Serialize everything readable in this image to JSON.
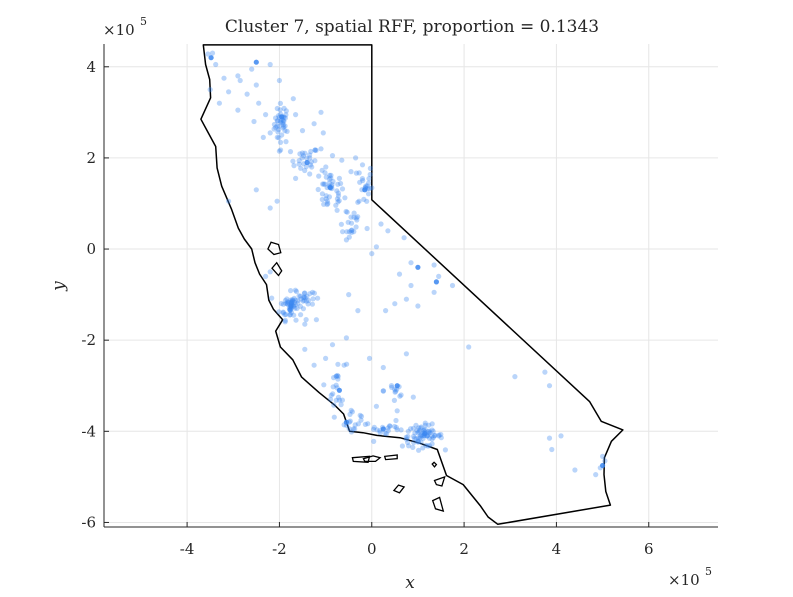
{
  "chart_data": {
    "type": "scatter",
    "title": "Cluster 7, spatial RFF, proportion = 0.1343",
    "xlabel": "x",
    "ylabel": "y",
    "x_exponent_base": "×10",
    "x_exponent_power": "5",
    "y_exponent_base": "×10",
    "y_exponent_power": "5",
    "xlim": [
      -5.8,
      7.5
    ],
    "ylim": [
      -6.1,
      4.5
    ],
    "xticks": [
      -4,
      -2,
      0,
      2,
      4,
      6
    ],
    "yticks": [
      -6,
      -4,
      -2,
      0,
      2,
      4
    ],
    "xtick_labels": [
      "-4",
      "-2",
      "0",
      "2",
      "4",
      "6"
    ],
    "ytick_labels": [
      "-6",
      "-4",
      "-2",
      "0",
      "2",
      "4"
    ],
    "grid": true,
    "colors": {
      "points": "#3a86f0",
      "outline": "#000000",
      "grid": "#e6e6e6",
      "axes": "#262626"
    },
    "outline": [
      [
        -3.65,
        4.48
      ],
      [
        0.0,
        4.48
      ],
      [
        0.0,
        1.08
      ],
      [
        4.72,
        -3.35
      ],
      [
        4.97,
        -3.78
      ],
      [
        5.44,
        -3.97
      ],
      [
        5.19,
        -4.22
      ],
      [
        5.04,
        -4.58
      ],
      [
        5.03,
        -4.95
      ],
      [
        5.07,
        -5.32
      ],
      [
        5.17,
        -5.62
      ],
      [
        2.73,
        -6.04
      ],
      [
        2.52,
        -5.88
      ],
      [
        2.35,
        -5.63
      ],
      [
        2.18,
        -5.42
      ],
      [
        1.98,
        -5.17
      ],
      [
        1.62,
        -4.97
      ],
      [
        1.42,
        -4.4
      ],
      [
        1.04,
        -4.26
      ],
      [
        0.61,
        -4.14
      ],
      [
        0.11,
        -4.09
      ],
      [
        -0.19,
        -4.03
      ],
      [
        -0.48,
        -4.0
      ],
      [
        -0.61,
        -3.62
      ],
      [
        -0.81,
        -3.42
      ],
      [
        -1.14,
        -3.15
      ],
      [
        -1.52,
        -2.81
      ],
      [
        -1.71,
        -2.43
      ],
      [
        -1.98,
        -2.15
      ],
      [
        -2.08,
        -1.8
      ],
      [
        -1.93,
        -1.55
      ],
      [
        -2.13,
        -1.32
      ],
      [
        -2.23,
        -1.12
      ],
      [
        -2.28,
        -0.78
      ],
      [
        -2.43,
        -0.55
      ],
      [
        -2.53,
        -0.3
      ],
      [
        -2.6,
        0.0
      ],
      [
        -2.76,
        0.22
      ],
      [
        -2.89,
        0.46
      ],
      [
        -3.04,
        0.88
      ],
      [
        -3.25,
        1.38
      ],
      [
        -3.35,
        1.78
      ],
      [
        -3.38,
        2.25
      ],
      [
        -3.54,
        2.55
      ],
      [
        -3.7,
        2.85
      ],
      [
        -3.49,
        3.32
      ],
      [
        -3.51,
        3.72
      ],
      [
        -3.6,
        4.05
      ],
      [
        -3.65,
        4.48
      ]
    ],
    "islands": [
      [
        [
          -2.18,
          0.15
        ],
        [
          -2.02,
          0.1
        ],
        [
          -1.97,
          -0.08
        ],
        [
          -2.12,
          -0.12
        ],
        [
          -2.25,
          0.0
        ],
        [
          -2.18,
          0.15
        ]
      ],
      [
        [
          -2.06,
          -0.3
        ],
        [
          -1.95,
          -0.48
        ],
        [
          -2.02,
          -0.58
        ],
        [
          -2.16,
          -0.42
        ],
        [
          -2.06,
          -0.3
        ]
      ],
      [
        [
          -0.42,
          -4.58
        ],
        [
          -0.05,
          -4.55
        ],
        [
          -0.08,
          -4.68
        ],
        [
          -0.4,
          -4.66
        ],
        [
          -0.42,
          -4.58
        ]
      ],
      [
        [
          -0.18,
          -4.6
        ],
        [
          0.03,
          -4.54
        ],
        [
          0.18,
          -4.58
        ],
        [
          0.08,
          -4.66
        ],
        [
          -0.15,
          -4.66
        ],
        [
          -0.18,
          -4.6
        ]
      ],
      [
        [
          0.28,
          -4.55
        ],
        [
          0.55,
          -4.52
        ],
        [
          0.55,
          -4.6
        ],
        [
          0.3,
          -4.62
        ],
        [
          0.28,
          -4.55
        ]
      ],
      [
        [
          1.35,
          -4.68
        ],
        [
          1.4,
          -4.73
        ],
        [
          1.36,
          -4.78
        ],
        [
          1.31,
          -4.72
        ],
        [
          1.35,
          -4.68
        ]
      ],
      [
        [
          1.36,
          -5.08
        ],
        [
          1.58,
          -5.0
        ],
        [
          1.52,
          -5.2
        ],
        [
          1.4,
          -5.17
        ],
        [
          1.36,
          -5.08
        ]
      ],
      [
        [
          0.48,
          -5.3
        ],
        [
          0.58,
          -5.18
        ],
        [
          0.7,
          -5.22
        ],
        [
          0.6,
          -5.35
        ],
        [
          0.48,
          -5.3
        ]
      ],
      [
        [
          1.32,
          -5.52
        ],
        [
          1.47,
          -5.45
        ],
        [
          1.55,
          -5.75
        ],
        [
          1.38,
          -5.7
        ],
        [
          1.32,
          -5.52
        ]
      ]
    ],
    "dense_clusters": [
      {
        "cx": -1.95,
        "cy": 2.75,
        "sx": 0.08,
        "sy": 0.22,
        "n": 40
      },
      {
        "cx": -1.45,
        "cy": 1.95,
        "sx": 0.15,
        "sy": 0.15,
        "n": 25
      },
      {
        "cx": -0.9,
        "cy": 1.25,
        "sx": 0.15,
        "sy": 0.22,
        "n": 40
      },
      {
        "cx": -0.15,
        "cy": 1.4,
        "sx": 0.08,
        "sy": 0.25,
        "n": 22
      },
      {
        "cx": -0.5,
        "cy": 0.6,
        "sx": 0.15,
        "sy": 0.2,
        "n": 20
      },
      {
        "cx": -1.75,
        "cy": -1.25,
        "sx": 0.12,
        "sy": 0.15,
        "n": 55
      },
      {
        "cx": -1.45,
        "cy": -1.05,
        "sx": 0.1,
        "sy": 0.1,
        "n": 22
      },
      {
        "cx": -0.75,
        "cy": -3.05,
        "sx": 0.1,
        "sy": 0.3,
        "n": 22
      },
      {
        "cx": -0.4,
        "cy": -3.8,
        "sx": 0.1,
        "sy": 0.15,
        "n": 15
      },
      {
        "cx": 0.3,
        "cy": -3.95,
        "sx": 0.25,
        "sy": 0.08,
        "n": 20
      },
      {
        "cx": 1.1,
        "cy": -4.1,
        "sx": 0.22,
        "sy": 0.12,
        "n": 70
      },
      {
        "cx": 0.5,
        "cy": -3.1,
        "sx": 0.12,
        "sy": 0.2,
        "n": 12
      }
    ],
    "scattered_points": [
      [
        -3.55,
        4.28
      ],
      [
        -3.45,
        4.3
      ],
      [
        -3.38,
        4.05
      ],
      [
        -3.2,
        3.75
      ],
      [
        -3.5,
        3.5
      ],
      [
        -3.1,
        3.45
      ],
      [
        -2.85,
        3.7
      ],
      [
        -2.5,
        3.6
      ],
      [
        -2.45,
        3.2
      ],
      [
        -2.7,
        3.4
      ],
      [
        -2.9,
        3.05
      ],
      [
        -3.3,
        3.2
      ],
      [
        -2.3,
        2.95
      ],
      [
        -2.55,
        2.8
      ],
      [
        -2.2,
        2.55
      ],
      [
        -2.35,
        2.45
      ],
      [
        -1.7,
        3.3
      ],
      [
        -1.65,
        2.95
      ],
      [
        -1.5,
        2.6
      ],
      [
        -1.25,
        2.75
      ],
      [
        -1.05,
        2.55
      ],
      [
        -1.1,
        2.2
      ],
      [
        -0.85,
        2.05
      ],
      [
        -0.65,
        1.95
      ],
      [
        -0.35,
        2.0
      ],
      [
        -0.45,
        1.7
      ],
      [
        -0.7,
        1.55
      ],
      [
        -1.15,
        1.6
      ],
      [
        -1.3,
        1.8
      ],
      [
        -1.65,
        1.55
      ],
      [
        -2.5,
        1.3
      ],
      [
        -2.05,
        1.05
      ],
      [
        -3.1,
        1.05
      ],
      [
        -2.2,
        4.05
      ],
      [
        -2.0,
        3.7
      ],
      [
        -2.0,
        2.15
      ],
      [
        -0.2,
        1.85
      ],
      [
        -0.1,
        0.45
      ],
      [
        0.2,
        0.55
      ],
      [
        0.35,
        0.4
      ],
      [
        0.7,
        0.25
      ],
      [
        0.1,
        0.05
      ],
      [
        -0.55,
        0.2
      ],
      [
        0.0,
        -0.1
      ],
      [
        0.85,
        -0.3
      ],
      [
        1.35,
        -0.35
      ],
      [
        0.6,
        -0.55
      ],
      [
        0.85,
        -0.8
      ],
      [
        1.45,
        -0.6
      ],
      [
        1.35,
        -0.95
      ],
      [
        1.75,
        -0.8
      ],
      [
        0.75,
        -1.1
      ],
      [
        0.5,
        -1.2
      ],
      [
        1.0,
        -1.25
      ],
      [
        0.3,
        -1.35
      ],
      [
        -0.5,
        -1.0
      ],
      [
        -0.3,
        -1.35
      ],
      [
        -0.55,
        -1.95
      ],
      [
        -1.2,
        -1.55
      ],
      [
        -0.85,
        -2.1
      ],
      [
        -1.0,
        -2.4
      ],
      [
        -1.45,
        -2.2
      ],
      [
        -1.25,
        -2.55
      ],
      [
        -0.6,
        -2.55
      ],
      [
        -0.05,
        -2.4
      ],
      [
        0.25,
        -2.6
      ],
      [
        0.75,
        -2.3
      ],
      [
        0.9,
        -3.25
      ],
      [
        0.55,
        -3.55
      ],
      [
        0.1,
        -3.45
      ],
      [
        -0.25,
        -3.65
      ],
      [
        2.1,
        -2.15
      ],
      [
        3.1,
        -2.8
      ],
      [
        3.75,
        -2.7
      ],
      [
        3.85,
        -3.0
      ],
      [
        3.85,
        -4.15
      ],
      [
        4.1,
        -4.1
      ],
      [
        3.9,
        -4.4
      ],
      [
        4.4,
        -4.85
      ],
      [
        4.95,
        -4.8
      ],
      [
        5.0,
        -4.55
      ],
      [
        4.85,
        -4.95
      ],
      [
        5.05,
        -4.65
      ],
      [
        -2.2,
        -0.5
      ],
      [
        -2.3,
        -0.6
      ],
      [
        -1.45,
        -1.65
      ],
      [
        -2.2,
        0.9
      ],
      [
        -0.75,
        0.85
      ],
      [
        -1.1,
        3.0
      ],
      [
        -2.9,
        3.8
      ],
      [
        -2.6,
        3.95
      ]
    ],
    "accent_points": [
      [
        -3.48,
        4.2
      ],
      [
        -2.5,
        4.1
      ],
      [
        -1.95,
        2.9
      ],
      [
        -1.4,
        1.9
      ],
      [
        -0.9,
        1.35
      ],
      [
        -0.15,
        1.3
      ],
      [
        1.0,
        -0.4
      ],
      [
        1.4,
        -0.72
      ],
      [
        -1.75,
        -1.25
      ],
      [
        -0.7,
        -3.1
      ],
      [
        0.55,
        -3.0
      ],
      [
        1.15,
        -4.05
      ],
      [
        0.25,
        -3.95
      ],
      [
        -0.55,
        -3.8
      ],
      [
        5.0,
        -4.75
      ]
    ]
  }
}
